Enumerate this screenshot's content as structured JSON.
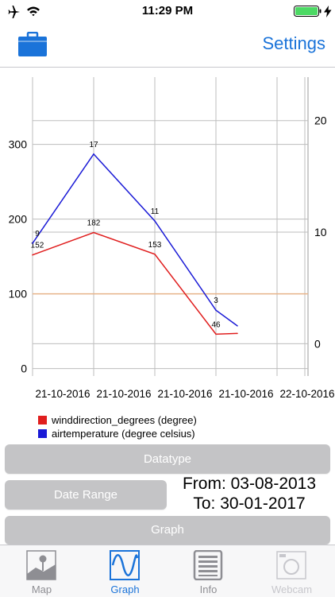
{
  "status_bar": {
    "time": "11:29 PM",
    "icons": [
      "airplane-icon",
      "wifi-icon",
      "battery-icon",
      "charging-bolt-icon"
    ],
    "battery_color": "#4cd964"
  },
  "nav": {
    "settings_label": "Settings",
    "left_icon": "briefcase-icon",
    "accent_color": "#1a73d9"
  },
  "chart_data": {
    "type": "line",
    "categories": [
      "21-10-2016",
      "21-10-2016",
      "21-10-2016",
      "21-10-2016",
      "22-10-2016"
    ],
    "y_left": {
      "ticks": [
        0,
        100,
        200,
        300
      ],
      "range": [
        -10,
        390
      ]
    },
    "y_right": {
      "ticks": [
        0,
        10,
        20
      ],
      "range": [
        -2.9,
        23.9
      ]
    },
    "series": [
      {
        "name": "winddirection_degrees (degree)",
        "color": "#e01e1e",
        "axis": "left",
        "x": [
          0,
          1,
          2,
          3,
          3.35
        ],
        "values": [
          152,
          182,
          153,
          46,
          47
        ],
        "point_labels": [
          "152",
          "182",
          "153",
          "46",
          ""
        ]
      },
      {
        "name": "airtemperature (degree celsius)",
        "color": "#1a1ad6",
        "axis": "right",
        "x": [
          0,
          1,
          2,
          3,
          3.35
        ],
        "values": [
          9,
          17,
          11,
          3,
          1.6
        ],
        "point_labels": [
          "9",
          "17",
          "11",
          "3",
          ""
        ]
      }
    ],
    "reference_line": {
      "value": 100,
      "axis": "left",
      "color": "#e8b48a"
    },
    "grid": true
  },
  "legend": [
    {
      "label": "winddirection_degrees (degree)",
      "color": "#e01e1e"
    },
    {
      "label": "airtemperature (degree celsius)",
      "color": "#1a1ad6"
    }
  ],
  "controls": {
    "datatype_label": "Datatype",
    "daterange_label": "Date Range",
    "graph_label": "Graph",
    "from_text": "From: 03-08-2013",
    "to_text": "To: 30-01-2017"
  },
  "tabs": [
    {
      "label": "Map",
      "icon": "map-icon",
      "color": "#8e8e93"
    },
    {
      "label": "Graph",
      "icon": "graph-icon",
      "color": "#1a73d9",
      "active": true
    },
    {
      "label": "Info",
      "icon": "info-document-icon",
      "color": "#8e8e93"
    },
    {
      "label": "Webcam",
      "icon": "camera-icon",
      "color": "#c7c7cc"
    }
  ]
}
